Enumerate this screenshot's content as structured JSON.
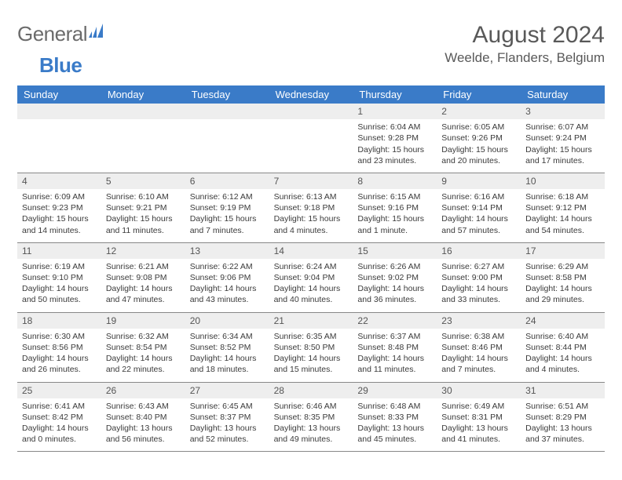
{
  "logo": {
    "word1": "General",
    "word2": "Blue"
  },
  "title": "August 2024",
  "location": "Weelde, Flanders, Belgium",
  "colors": {
    "header_bg": "#3a7bc8",
    "header_text": "#ffffff",
    "daynum_bg": "#eeeeee",
    "border": "#888888",
    "text": "#3a3a3a",
    "title_text": "#595959",
    "logo_gray": "#6b6b6b",
    "logo_blue": "#3a7bc8"
  },
  "weekdays": [
    "Sunday",
    "Monday",
    "Tuesday",
    "Wednesday",
    "Thursday",
    "Friday",
    "Saturday"
  ],
  "layout": {
    "columns": 7,
    "rows": 5,
    "first_blank_cells": 4
  },
  "days": [
    {
      "n": 1,
      "sunrise": "6:04 AM",
      "sunset": "9:28 PM",
      "daylight": "15 hours and 23 minutes."
    },
    {
      "n": 2,
      "sunrise": "6:05 AM",
      "sunset": "9:26 PM",
      "daylight": "15 hours and 20 minutes."
    },
    {
      "n": 3,
      "sunrise": "6:07 AM",
      "sunset": "9:24 PM",
      "daylight": "15 hours and 17 minutes."
    },
    {
      "n": 4,
      "sunrise": "6:09 AM",
      "sunset": "9:23 PM",
      "daylight": "15 hours and 14 minutes."
    },
    {
      "n": 5,
      "sunrise": "6:10 AM",
      "sunset": "9:21 PM",
      "daylight": "15 hours and 11 minutes."
    },
    {
      "n": 6,
      "sunrise": "6:12 AM",
      "sunset": "9:19 PM",
      "daylight": "15 hours and 7 minutes."
    },
    {
      "n": 7,
      "sunrise": "6:13 AM",
      "sunset": "9:18 PM",
      "daylight": "15 hours and 4 minutes."
    },
    {
      "n": 8,
      "sunrise": "6:15 AM",
      "sunset": "9:16 PM",
      "daylight": "15 hours and 1 minute."
    },
    {
      "n": 9,
      "sunrise": "6:16 AM",
      "sunset": "9:14 PM",
      "daylight": "14 hours and 57 minutes."
    },
    {
      "n": 10,
      "sunrise": "6:18 AM",
      "sunset": "9:12 PM",
      "daylight": "14 hours and 54 minutes."
    },
    {
      "n": 11,
      "sunrise": "6:19 AM",
      "sunset": "9:10 PM",
      "daylight": "14 hours and 50 minutes."
    },
    {
      "n": 12,
      "sunrise": "6:21 AM",
      "sunset": "9:08 PM",
      "daylight": "14 hours and 47 minutes."
    },
    {
      "n": 13,
      "sunrise": "6:22 AM",
      "sunset": "9:06 PM",
      "daylight": "14 hours and 43 minutes."
    },
    {
      "n": 14,
      "sunrise": "6:24 AM",
      "sunset": "9:04 PM",
      "daylight": "14 hours and 40 minutes."
    },
    {
      "n": 15,
      "sunrise": "6:26 AM",
      "sunset": "9:02 PM",
      "daylight": "14 hours and 36 minutes."
    },
    {
      "n": 16,
      "sunrise": "6:27 AM",
      "sunset": "9:00 PM",
      "daylight": "14 hours and 33 minutes."
    },
    {
      "n": 17,
      "sunrise": "6:29 AM",
      "sunset": "8:58 PM",
      "daylight": "14 hours and 29 minutes."
    },
    {
      "n": 18,
      "sunrise": "6:30 AM",
      "sunset": "8:56 PM",
      "daylight": "14 hours and 26 minutes."
    },
    {
      "n": 19,
      "sunrise": "6:32 AM",
      "sunset": "8:54 PM",
      "daylight": "14 hours and 22 minutes."
    },
    {
      "n": 20,
      "sunrise": "6:34 AM",
      "sunset": "8:52 PM",
      "daylight": "14 hours and 18 minutes."
    },
    {
      "n": 21,
      "sunrise": "6:35 AM",
      "sunset": "8:50 PM",
      "daylight": "14 hours and 15 minutes."
    },
    {
      "n": 22,
      "sunrise": "6:37 AM",
      "sunset": "8:48 PM",
      "daylight": "14 hours and 11 minutes."
    },
    {
      "n": 23,
      "sunrise": "6:38 AM",
      "sunset": "8:46 PM",
      "daylight": "14 hours and 7 minutes."
    },
    {
      "n": 24,
      "sunrise": "6:40 AM",
      "sunset": "8:44 PM",
      "daylight": "14 hours and 4 minutes."
    },
    {
      "n": 25,
      "sunrise": "6:41 AM",
      "sunset": "8:42 PM",
      "daylight": "14 hours and 0 minutes."
    },
    {
      "n": 26,
      "sunrise": "6:43 AM",
      "sunset": "8:40 PM",
      "daylight": "13 hours and 56 minutes."
    },
    {
      "n": 27,
      "sunrise": "6:45 AM",
      "sunset": "8:37 PM",
      "daylight": "13 hours and 52 minutes."
    },
    {
      "n": 28,
      "sunrise": "6:46 AM",
      "sunset": "8:35 PM",
      "daylight": "13 hours and 49 minutes."
    },
    {
      "n": 29,
      "sunrise": "6:48 AM",
      "sunset": "8:33 PM",
      "daylight": "13 hours and 45 minutes."
    },
    {
      "n": 30,
      "sunrise": "6:49 AM",
      "sunset": "8:31 PM",
      "daylight": "13 hours and 41 minutes."
    },
    {
      "n": 31,
      "sunrise": "6:51 AM",
      "sunset": "8:29 PM",
      "daylight": "13 hours and 37 minutes."
    }
  ]
}
